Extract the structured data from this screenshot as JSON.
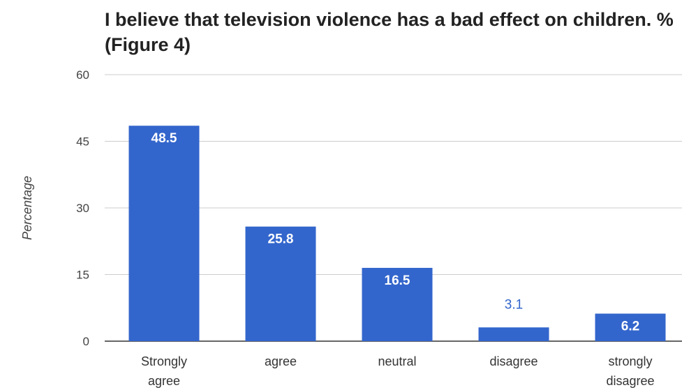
{
  "chart_data": {
    "type": "bar",
    "title": "I believe that television violence has a bad effect on children. % (Figure 4)",
    "ylabel": "Percentage",
    "xlabel": "",
    "categories": [
      [
        "Strongly",
        "agree"
      ],
      [
        "agree"
      ],
      [
        "neutral"
      ],
      [
        "disagree"
      ],
      [
        "strongly",
        "disagree"
      ]
    ],
    "values": [
      48.5,
      25.8,
      16.5,
      3.1,
      6.2
    ],
    "value_labels": [
      "48.5",
      "25.8",
      "16.5",
      "3.1",
      "6.2"
    ],
    "ylim": [
      0,
      60
    ],
    "yticks": [
      0,
      15,
      30,
      45,
      60
    ],
    "ytick_labels": [
      "0",
      "15",
      "30",
      "45",
      "60"
    ],
    "grid": true,
    "legend": "none",
    "colors": {
      "bar": "#3366cc",
      "grid": "#cccccc",
      "axis": "#333333",
      "label_outside": "#3366cc"
    }
  }
}
